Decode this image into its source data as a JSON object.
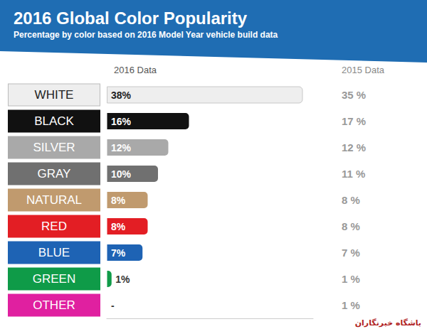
{
  "chart_data": {
    "type": "bar",
    "orientation": "horizontal",
    "title": "2016 Global Color Popularity",
    "subtitle": "Percentage by color based on 2016 Model Year vehicle build data",
    "categories": [
      "WHITE",
      "BLACK",
      "SILVER",
      "GRAY",
      "NATURAL",
      "RED",
      "BLUE",
      "GREEN",
      "OTHER"
    ],
    "series": [
      {
        "name": "2016 Data",
        "type": "bar",
        "values": [
          38,
          16,
          12,
          10,
          8,
          8,
          7,
          1,
          null
        ],
        "value_labels": [
          "38%",
          "16%",
          "12%",
          "10%",
          "8%",
          "8%",
          "7%",
          "1%",
          "-"
        ],
        "colors": [
          "#eeeeee",
          "#111111",
          "#a9a9a9",
          "#707070",
          "#c09a6e",
          "#e31e24",
          "#1e63b4",
          "#0f9b48",
          "#e020a0"
        ]
      },
      {
        "name": "2015 Data",
        "type": "text",
        "values": [
          35,
          17,
          12,
          11,
          8,
          8,
          7,
          1,
          1
        ],
        "value_labels": [
          "35 %",
          "17 %",
          "12 %",
          "11 %",
          "8 %",
          "8 %",
          "7 %",
          "1 %",
          "1 %"
        ]
      }
    ],
    "xlim": [
      0,
      40
    ],
    "tick_labels": "y",
    "data_labels": true,
    "watermark": "باشگاه خبرنگاران"
  }
}
